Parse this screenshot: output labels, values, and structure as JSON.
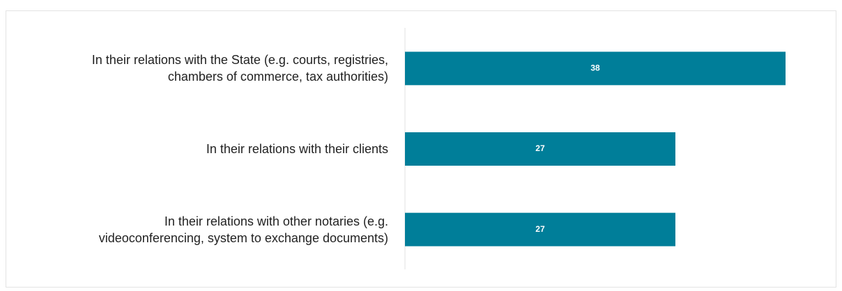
{
  "chart_data": {
    "type": "bar",
    "orientation": "horizontal",
    "categories": [
      "In their relations with the State (e.g. courts, registries,\nchambers of commerce, tax authorities)",
      "In their relations with their clients",
      "In their relations with other notaries (e.g.\nvideoconferencing, system to exchange documents)"
    ],
    "values": [
      38,
      27,
      27
    ],
    "color": "#007e99",
    "xlim": [
      0,
      38
    ]
  }
}
